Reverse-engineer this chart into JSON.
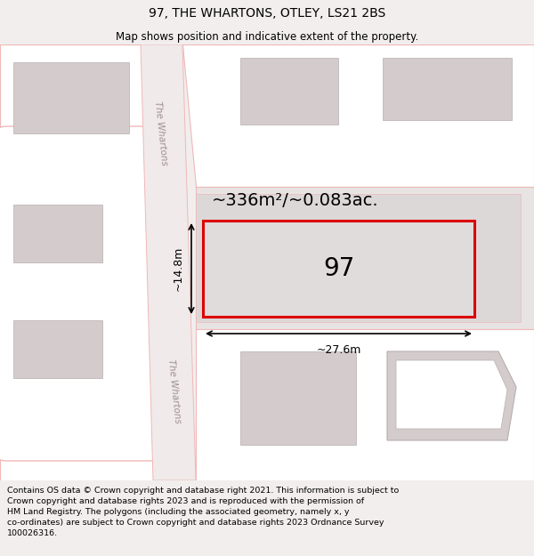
{
  "title": "97, THE WHARTONS, OTLEY, LS21 2BS",
  "subtitle": "Map shows position and indicative extent of the property.",
  "footer_text": "Contains OS data © Crown copyright and database right 2021. This information is subject to\nCrown copyright and database rights 2023 and is reproduced with the permission of\nHM Land Registry. The polygons (including the associated geometry, namely x, y\nco-ordinates) are subject to Crown copyright and database rights 2023 Ordnance Survey\n100026316.",
  "bg_color": "#f2eeee",
  "map_bg": "#ffffff",
  "area_label": "~336m²/~0.083ac.",
  "plot_number": "97",
  "width_label": "~27.6m",
  "height_label": "~14.8m",
  "plot_color": "#dd0000",
  "road_color": "#f0b8b8",
  "building_color": "#d4cccc",
  "block_color": "#e8e4e4",
  "street_label": "The Whartons"
}
